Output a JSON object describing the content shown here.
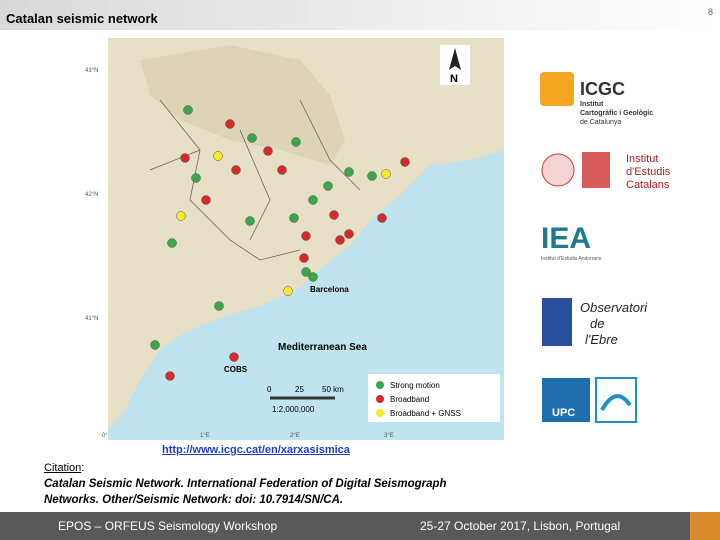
{
  "header": {
    "title": "Catalan seismic network",
    "page_number": "8"
  },
  "map": {
    "north": "N",
    "lon_labels": [
      "0°",
      "1°E",
      "2°E",
      "3°E"
    ],
    "lat_labels": [
      "43°N",
      "42°N",
      "41°N"
    ],
    "city": "Barcelona",
    "sea": "Mediterranean Sea",
    "obs": "COBS",
    "scale": {
      "ticks": [
        "0",
        "25",
        "50 km"
      ],
      "ratio": "1:2,000,000"
    },
    "legend": [
      "Strong motion",
      "Broadband",
      "Broadband + GNSS"
    ]
  },
  "logos": {
    "icgc": {
      "name": "ICGC",
      "line1": "Institut",
      "line2": "Cartogràfic i Geològic",
      "line3": "de Catalunya"
    },
    "iec": {
      "line1": "Institut",
      "line2": "d'Estudis",
      "line3": "Catalans"
    },
    "iea": {
      "name": "IEA",
      "sub": "Institut d'Estudis Andorrans"
    },
    "ebre": {
      "line1": "Observatori",
      "line2": "de",
      "line3": "l'Ebre"
    },
    "upc": {
      "name": "UPC"
    }
  },
  "link": "http://www.icgc.cat/en/xarxasismica",
  "citation": {
    "label": "Citation",
    "sep": ":",
    "line1": "Catalan Seismic Network. International Federation of Digital Seismograph",
    "line2": "Networks. Other/Seismic Network: doi: 10.7914/SN/CA."
  },
  "footer": {
    "event": "EPOS – ORFEUS Seismology Workshop",
    "date": "25-27 October 2017, Lisbon, Portugal"
  }
}
